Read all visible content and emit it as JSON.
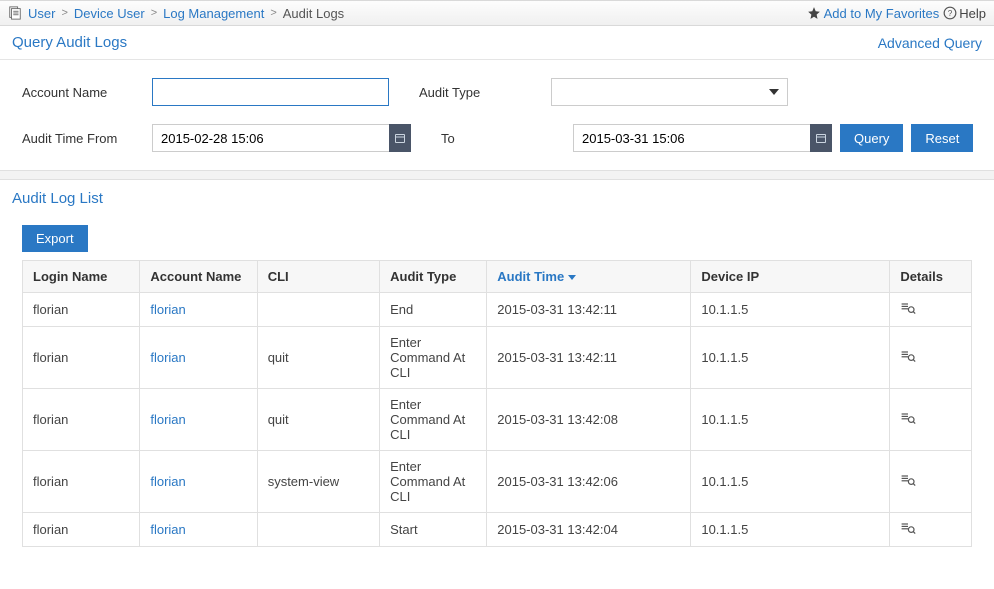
{
  "breadcrumb": {
    "items": [
      "User",
      "Device User",
      "Log Management",
      "Audit Logs"
    ]
  },
  "topright": {
    "favorites": "Add to My Favorites",
    "help": "Help"
  },
  "query": {
    "title": "Query Audit Logs",
    "advanced": "Advanced Query",
    "labels": {
      "account": "Account Name",
      "auditType": "Audit Type",
      "timeFrom": "Audit Time From",
      "timeTo": "To"
    },
    "values": {
      "account": "",
      "auditType": "",
      "timeFrom": "2015-02-28 15:06",
      "timeTo": "2015-03-31 15:06"
    },
    "buttons": {
      "query": "Query",
      "reset": "Reset"
    }
  },
  "list": {
    "title": "Audit Log List",
    "export": "Export",
    "columns": {
      "login": "Login Name",
      "account": "Account Name",
      "cli": "CLI",
      "type": "Audit Type",
      "time": "Audit Time",
      "ip": "Device IP",
      "details": "Details"
    },
    "sortColumn": "time",
    "rows": [
      {
        "login": "florian",
        "account": "florian",
        "cli": "",
        "type": "End",
        "time": "2015-03-31 13:42:11",
        "ip": "10.1.1.5"
      },
      {
        "login": "florian",
        "account": "florian",
        "cli": "quit",
        "type": "Enter Command At CLI",
        "time": "2015-03-31 13:42:11",
        "ip": "10.1.1.5"
      },
      {
        "login": "florian",
        "account": "florian",
        "cli": "quit",
        "type": "Enter Command At CLI",
        "time": "2015-03-31 13:42:08",
        "ip": "10.1.1.5"
      },
      {
        "login": "florian",
        "account": "florian",
        "cli": "system-view",
        "type": "Enter Command At CLI",
        "time": "2015-03-31 13:42:06",
        "ip": "10.1.1.5"
      },
      {
        "login": "florian",
        "account": "florian",
        "cli": "",
        "type": "Start",
        "time": "2015-03-31 13:42:04",
        "ip": "10.1.1.5"
      }
    ]
  },
  "colors": {
    "link": "#2a78c4",
    "headerBg": "#f7f7f7",
    "border": "#e0e0e0"
  }
}
